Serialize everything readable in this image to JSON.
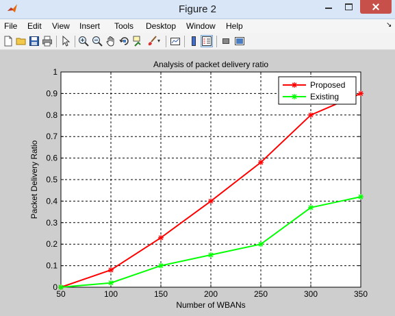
{
  "window": {
    "title": "Figure 2"
  },
  "menu": [
    "File",
    "Edit",
    "View",
    "Insert",
    "Tools",
    "Desktop",
    "Window",
    "Help"
  ],
  "toolbar": {
    "icons": [
      "new-figure-icon",
      "open-file-icon",
      "save-icon",
      "print-icon",
      "edit-plot-arrow-icon",
      "zoom-in-icon",
      "zoom-out-icon",
      "pan-hand-icon",
      "rotate-3d-icon",
      "data-cursor-icon",
      "brush-icon",
      "brush-dropdown-icon",
      "link-plot-icon",
      "colorbar-icon",
      "legend-icon",
      "hide-plot-tools-icon",
      "show-plot-tools-icon"
    ]
  },
  "colors": {
    "proposed": "#ff0000",
    "existing": "#00ff00",
    "plot_background": "#ffffff",
    "figure_background": "#cecece"
  },
  "chart_data": {
    "type": "line",
    "title": "Analysis of packet delivery ratio",
    "xlabel": "Number of WBANs",
    "ylabel": "Packet Delivery Ratio",
    "x": [
      50,
      100,
      150,
      200,
      250,
      300,
      350
    ],
    "xlim": [
      50,
      350
    ],
    "ylim": [
      0,
      1
    ],
    "xticks": [
      "50",
      "100",
      "150",
      "200",
      "250",
      "300",
      "350"
    ],
    "yticks": [
      "0",
      "0.1",
      "0.2",
      "0.3",
      "0.4",
      "0.5",
      "0.6",
      "0.7",
      "0.8",
      "0.9",
      "1"
    ],
    "grid": true,
    "legend_position": "top-right",
    "series": [
      {
        "name": "Proposed",
        "color": "#ff0000",
        "marker": "*",
        "values": [
          0,
          0.08,
          0.23,
          0.4,
          0.58,
          0.8,
          0.9
        ]
      },
      {
        "name": "Existing",
        "color": "#00ff00",
        "marker": "*",
        "values": [
          0,
          0.02,
          0.1,
          0.15,
          0.2,
          0.37,
          0.42
        ]
      }
    ]
  }
}
